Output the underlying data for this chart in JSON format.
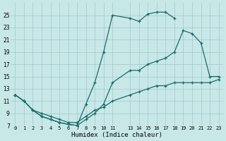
{
  "xlabel": "Humidex (Indice chaleur)",
  "bg_color": "#c8e8e8",
  "line_color": "#1a6b6b",
  "grid_color": "#a0c8c8",
  "xlim": [
    -0.5,
    23.5
  ],
  "ylim": [
    7,
    27
  ],
  "yticks": [
    7,
    9,
    11,
    13,
    15,
    17,
    19,
    21,
    23,
    25
  ],
  "xtick_labels": [
    "0",
    "1",
    "2",
    "3",
    "4",
    "5",
    "6",
    "7",
    "8",
    "9",
    "10",
    "11",
    "13",
    "14",
    "15",
    "16",
    "17",
    "18",
    "19",
    "20",
    "21",
    "22",
    "23"
  ],
  "xtick_pos": [
    0,
    1,
    2,
    3,
    4,
    5,
    6,
    7,
    8,
    9,
    10,
    11,
    13,
    14,
    15,
    16,
    17,
    18,
    19,
    20,
    21,
    22,
    23
  ],
  "curve_top_x": [
    0,
    1,
    2,
    3,
    4,
    5,
    6,
    7,
    8,
    9,
    10,
    11,
    13,
    14,
    15,
    16,
    17,
    18
  ],
  "curve_top_y": [
    12,
    11,
    9.5,
    8.5,
    8,
    7.5,
    7.2,
    7,
    10.5,
    14,
    19,
    25,
    24.5,
    24,
    25.2,
    25.5,
    25.5,
    24.5
  ],
  "curve_mid_x": [
    0,
    1,
    2,
    3,
    4,
    5,
    6,
    7,
    8,
    9,
    10,
    11,
    13,
    14,
    15,
    16,
    17,
    18,
    19,
    20,
    21,
    22,
    23
  ],
  "curve_mid_y": [
    12,
    11,
    9.5,
    8.5,
    8,
    7.5,
    7.2,
    7,
    8,
    9,
    10.5,
    14,
    16,
    16,
    17,
    17.5,
    18,
    19,
    22.5,
    22,
    20.5,
    15,
    15
  ],
  "curve_bot_x": [
    0,
    1,
    2,
    3,
    4,
    5,
    6,
    7,
    8,
    9,
    10,
    11,
    13,
    14,
    15,
    16,
    17,
    18,
    19,
    20,
    21,
    22,
    23
  ],
  "curve_bot_y": [
    12,
    11,
    9.5,
    9,
    8.5,
    8,
    7.5,
    7.5,
    8.5,
    9.5,
    10,
    11,
    12,
    12.5,
    13,
    13.5,
    13.5,
    14,
    14,
    14,
    14,
    14,
    14.5
  ]
}
